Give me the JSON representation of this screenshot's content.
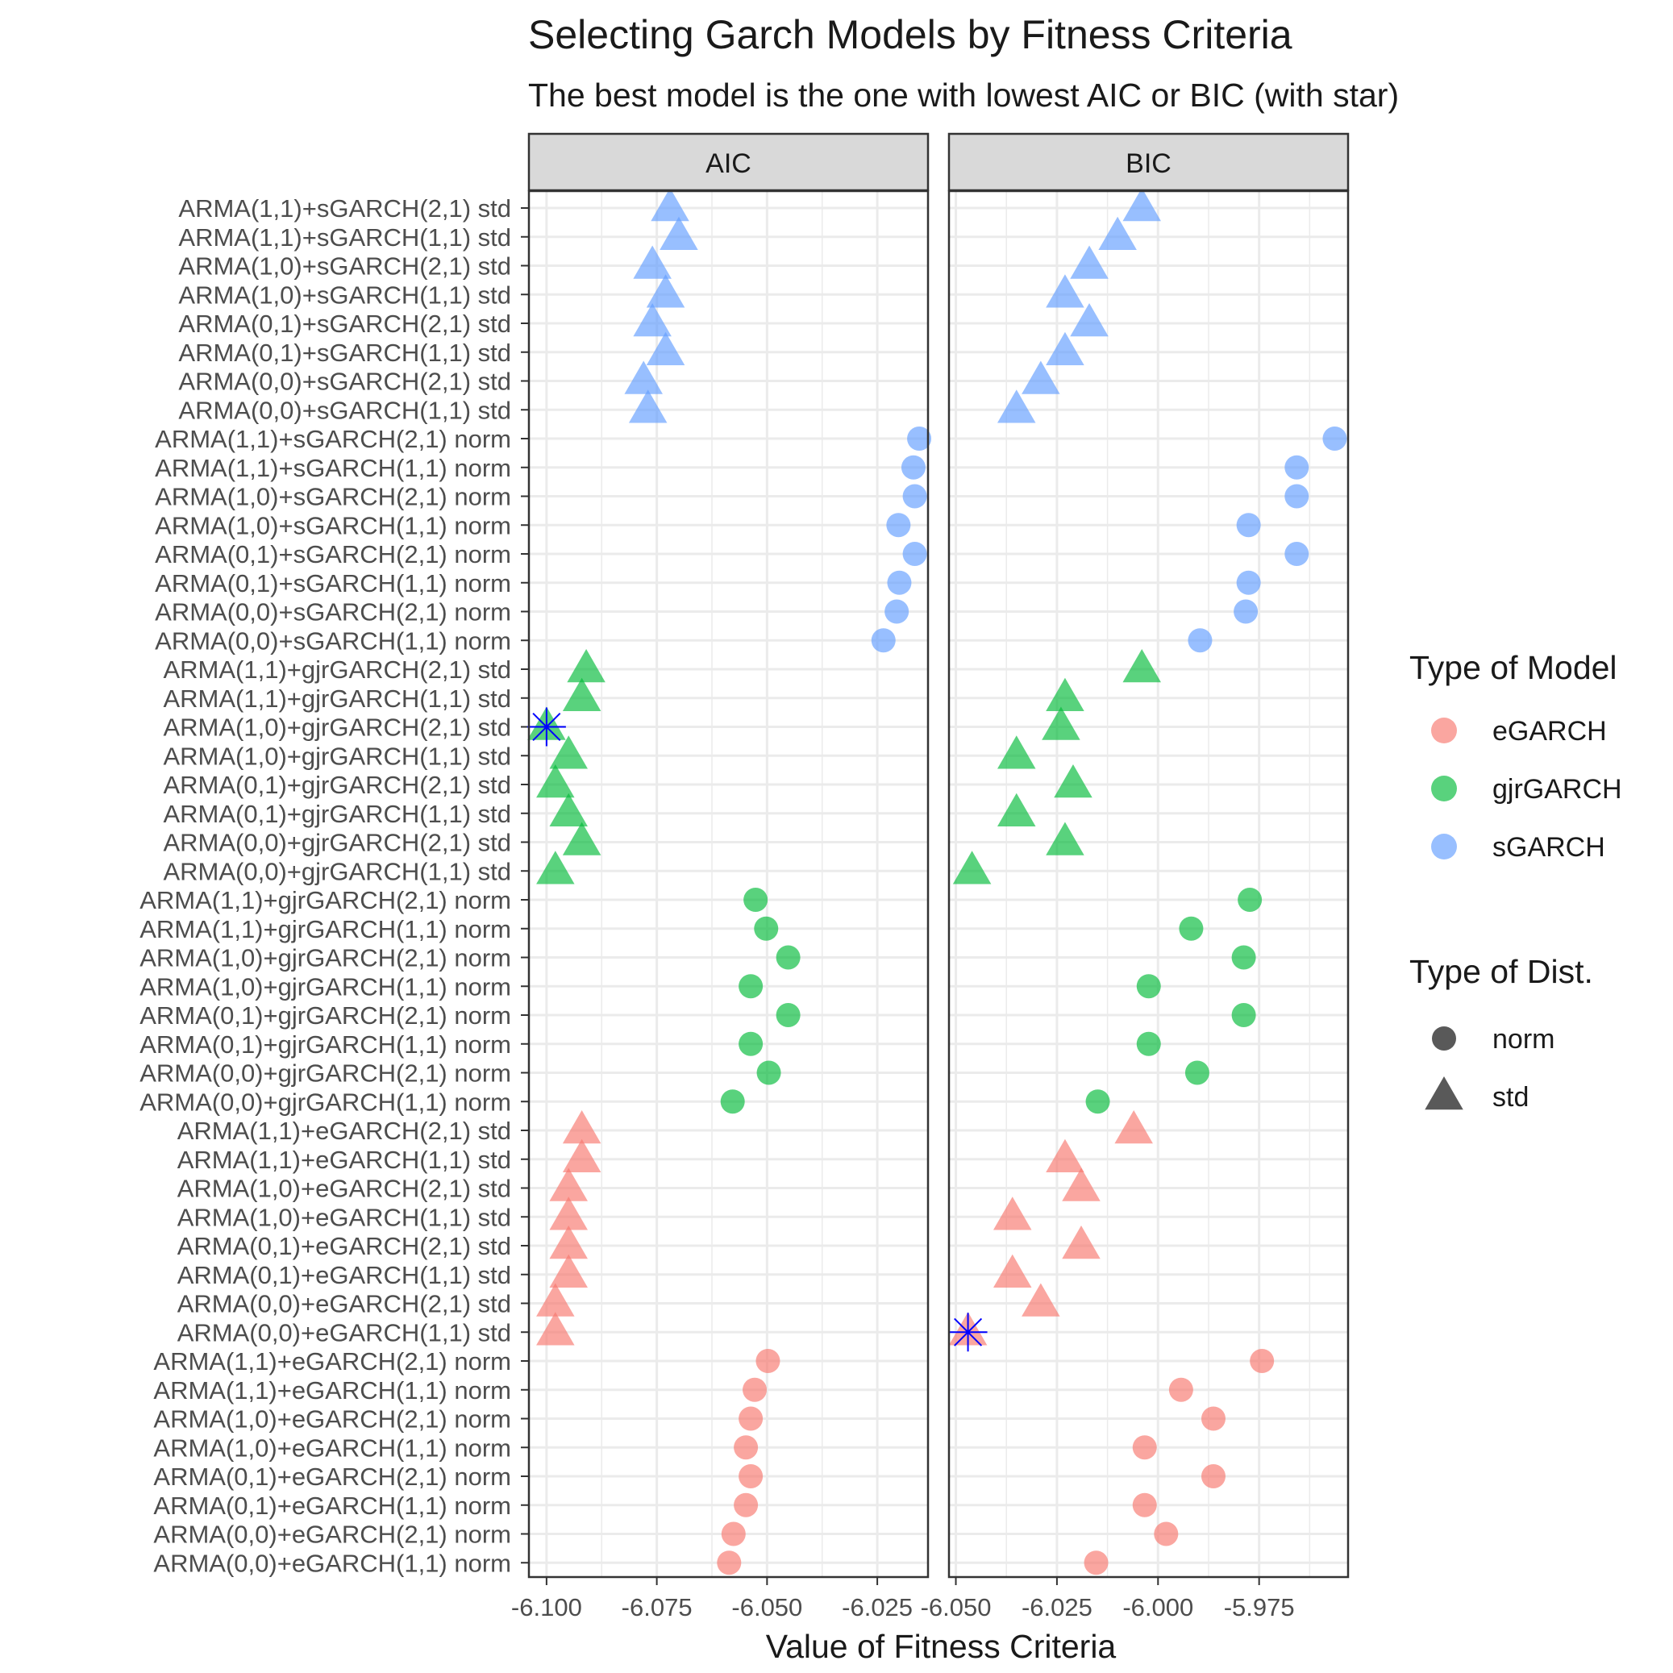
{
  "chart_data": {
    "type": "scatter",
    "title": "Selecting Garch Models by Fitness Criteria",
    "subtitle": "The best model is the one with lowest AIC or BIC (with star)",
    "xlabel": "Value of Fitness Criteria",
    "ylabel": "",
    "grid": true,
    "legend_position": "right",
    "categories": [
      "ARMA(1,1)+sGARCH(2,1) std",
      "ARMA(1,1)+sGARCH(1,1) std",
      "ARMA(1,0)+sGARCH(2,1) std",
      "ARMA(1,0)+sGARCH(1,1) std",
      "ARMA(0,1)+sGARCH(2,1) std",
      "ARMA(0,1)+sGARCH(1,1) std",
      "ARMA(0,0)+sGARCH(2,1) std",
      "ARMA(0,0)+sGARCH(1,1) std",
      "ARMA(1,1)+sGARCH(2,1) norm",
      "ARMA(1,1)+sGARCH(1,1) norm",
      "ARMA(1,0)+sGARCH(2,1) norm",
      "ARMA(1,0)+sGARCH(1,1) norm",
      "ARMA(0,1)+sGARCH(2,1) norm",
      "ARMA(0,1)+sGARCH(1,1) norm",
      "ARMA(0,0)+sGARCH(2,1) norm",
      "ARMA(0,0)+sGARCH(1,1) norm",
      "ARMA(1,1)+gjrGARCH(2,1) std",
      "ARMA(1,1)+gjrGARCH(1,1) std",
      "ARMA(1,0)+gjrGARCH(2,1) std",
      "ARMA(1,0)+gjrGARCH(1,1) std",
      "ARMA(0,1)+gjrGARCH(2,1) std",
      "ARMA(0,1)+gjrGARCH(1,1) std",
      "ARMA(0,0)+gjrGARCH(2,1) std",
      "ARMA(0,0)+gjrGARCH(1,1) std",
      "ARMA(1,1)+gjrGARCH(2,1) norm",
      "ARMA(1,1)+gjrGARCH(1,1) norm",
      "ARMA(1,0)+gjrGARCH(2,1) norm",
      "ARMA(1,0)+gjrGARCH(1,1) norm",
      "ARMA(0,1)+gjrGARCH(2,1) norm",
      "ARMA(0,1)+gjrGARCH(1,1) norm",
      "ARMA(0,0)+gjrGARCH(2,1) norm",
      "ARMA(0,0)+gjrGARCH(1,1) norm",
      "ARMA(1,1)+eGARCH(2,1) std",
      "ARMA(1,1)+eGARCH(1,1) std",
      "ARMA(1,0)+eGARCH(2,1) std",
      "ARMA(1,0)+eGARCH(1,1) std",
      "ARMA(0,1)+eGARCH(2,1) std",
      "ARMA(0,1)+eGARCH(1,1) std",
      "ARMA(0,0)+eGARCH(2,1) std",
      "ARMA(0,0)+eGARCH(1,1) std",
      "ARMA(1,1)+eGARCH(2,1) norm",
      "ARMA(1,1)+eGARCH(1,1) norm",
      "ARMA(1,0)+eGARCH(2,1) norm",
      "ARMA(1,0)+eGARCH(1,1) norm",
      "ARMA(0,1)+eGARCH(2,1) norm",
      "ARMA(0,1)+eGARCH(1,1) norm",
      "ARMA(0,0)+eGARCH(2,1) norm",
      "ARMA(0,0)+eGARCH(1,1) norm"
    ],
    "model_type": [
      "sGARCH",
      "sGARCH",
      "sGARCH",
      "sGARCH",
      "sGARCH",
      "sGARCH",
      "sGARCH",
      "sGARCH",
      "sGARCH",
      "sGARCH",
      "sGARCH",
      "sGARCH",
      "sGARCH",
      "sGARCH",
      "sGARCH",
      "sGARCH",
      "gjrGARCH",
      "gjrGARCH",
      "gjrGARCH",
      "gjrGARCH",
      "gjrGARCH",
      "gjrGARCH",
      "gjrGARCH",
      "gjrGARCH",
      "gjrGARCH",
      "gjrGARCH",
      "gjrGARCH",
      "gjrGARCH",
      "gjrGARCH",
      "gjrGARCH",
      "gjrGARCH",
      "gjrGARCH",
      "eGARCH",
      "eGARCH",
      "eGARCH",
      "eGARCH",
      "eGARCH",
      "eGARCH",
      "eGARCH",
      "eGARCH",
      "eGARCH",
      "eGARCH",
      "eGARCH",
      "eGARCH",
      "eGARCH",
      "eGARCH",
      "eGARCH",
      "eGARCH"
    ],
    "dist_type": [
      "std",
      "std",
      "std",
      "std",
      "std",
      "std",
      "std",
      "std",
      "norm",
      "norm",
      "norm",
      "norm",
      "norm",
      "norm",
      "norm",
      "norm",
      "std",
      "std",
      "std",
      "std",
      "std",
      "std",
      "std",
      "std",
      "norm",
      "norm",
      "norm",
      "norm",
      "norm",
      "norm",
      "norm",
      "norm",
      "std",
      "std",
      "std",
      "std",
      "std",
      "std",
      "std",
      "std",
      "norm",
      "norm",
      "norm",
      "norm",
      "norm",
      "norm",
      "norm",
      "norm"
    ],
    "panels": [
      {
        "name": "AIC",
        "xlim": [
          -6.104,
          -6.0135
        ],
        "x_ticks": [
          -6.1,
          -6.075,
          -6.05,
          -6.025
        ],
        "x_tick_labels": [
          "-6.100",
          "-6.075",
          "-6.050",
          "-6.025"
        ],
        "values": [
          -6.072,
          -6.07,
          -6.076,
          -6.073,
          -6.076,
          -6.073,
          -6.078,
          -6.077,
          -6.0155,
          -6.0168,
          -6.0165,
          -6.0202,
          -6.0165,
          -6.02,
          -6.0206,
          -6.0236,
          -6.091,
          -6.092,
          -6.1,
          -6.095,
          -6.098,
          -6.095,
          -6.092,
          -6.098,
          -6.0526,
          -6.0502,
          -6.0452,
          -6.0537,
          -6.0452,
          -6.0537,
          -6.0496,
          -6.0578,
          -6.092,
          -6.092,
          -6.095,
          -6.095,
          -6.095,
          -6.095,
          -6.098,
          -6.098,
          -6.0498,
          -6.0528,
          -6.0537,
          -6.0548,
          -6.0537,
          -6.0548,
          -6.0576,
          -6.0586
        ],
        "best_index": 18
      },
      {
        "name": "BIC",
        "xlim": [
          -6.0517,
          -5.953
        ],
        "x_ticks": [
          -6.05,
          -6.025,
          -6.0,
          -5.975
        ],
        "x_tick_labels": [
          "-6.050",
          "-6.025",
          "-6.000",
          "-5.975"
        ],
        "values": [
          -6.004,
          -6.01,
          -6.017,
          -6.023,
          -6.017,
          -6.023,
          -6.029,
          -6.035,
          -5.9563,
          -5.9657,
          -5.9657,
          -5.9776,
          -5.9657,
          -5.9776,
          -5.9783,
          -5.9896,
          -6.004,
          -6.023,
          -6.024,
          -6.035,
          -6.021,
          -6.035,
          -6.023,
          -6.046,
          -5.9773,
          -5.9918,
          -5.9788,
          -6.0023,
          -5.9788,
          -6.0023,
          -5.9903,
          -6.0149,
          -6.006,
          -6.023,
          -6.019,
          -6.036,
          -6.019,
          -6.036,
          -6.029,
          -6.047,
          -5.9743,
          -5.9943,
          -5.9863,
          -6.0033,
          -5.9863,
          -6.0033,
          -5.998,
          -6.0153
        ],
        "best_index": 39
      }
    ],
    "legend": {
      "model_title": "Type of Model",
      "model_entries": [
        "eGARCH",
        "gjrGARCH",
        "sGARCH"
      ],
      "dist_title": "Type of Dist.",
      "dist_entries": [
        "norm",
        "std"
      ]
    },
    "colors": {
      "eGARCH": "#f8766d",
      "gjrGARCH": "#00ba38",
      "sGARCH": "#619cff",
      "star": "#0000ff",
      "strip_fill": "#d9d9d9",
      "grid": "#ebebeb"
    }
  }
}
